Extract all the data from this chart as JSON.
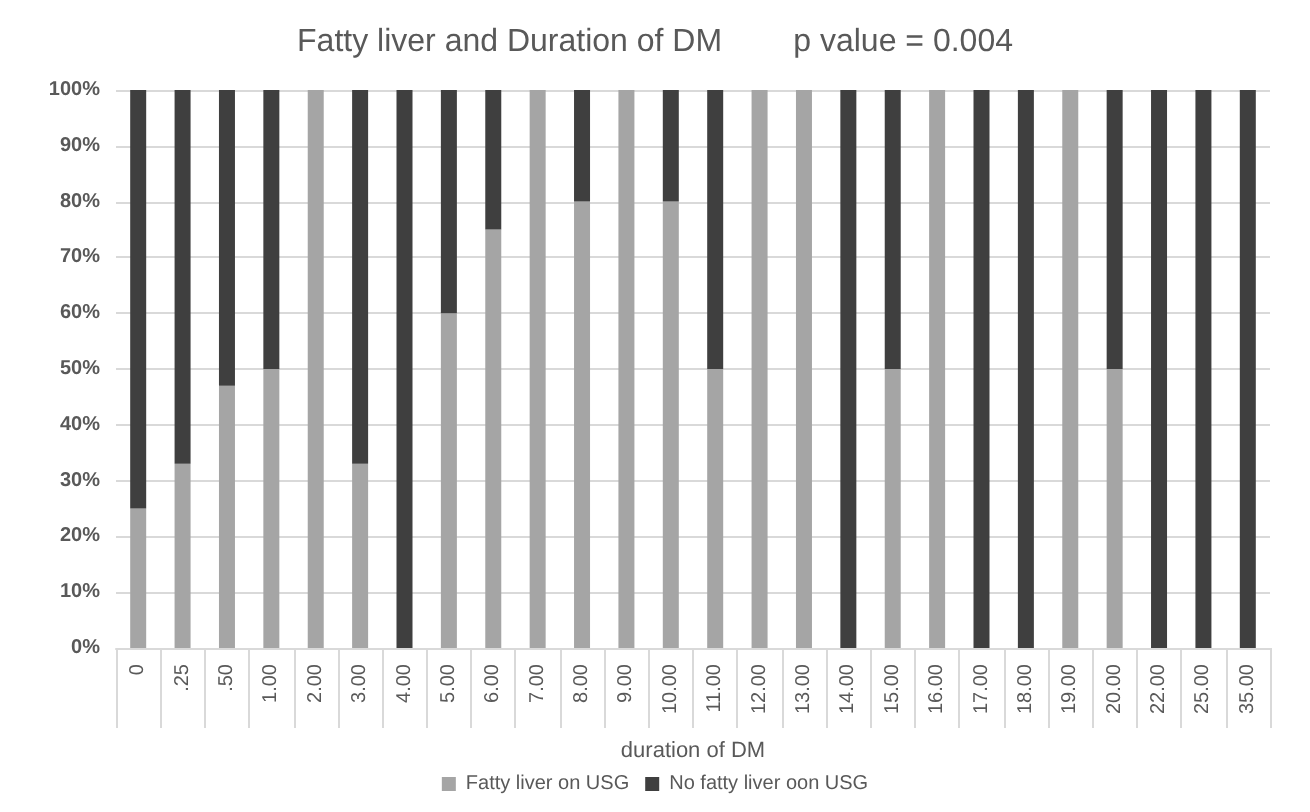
{
  "chart_data": {
    "type": "bar",
    "title": "Fatty liver and Duration of DM        p value = 0.004",
    "xlabel": "duration of DM",
    "stacked": true,
    "categories": [
      "0",
      ".25",
      ".50",
      "1.00",
      "2.00",
      "3.00",
      "4.00",
      "5.00",
      "6.00",
      "7.00",
      "8.00",
      "9.00",
      "10.00",
      "11.00",
      "12.00",
      "13.00",
      "14.00",
      "15.00",
      "16.00",
      "17.00",
      "18.00",
      "19.00",
      "20.00",
      "22.00",
      "25.00",
      "35.00"
    ],
    "series": [
      {
        "name": "Fatty liver on USG",
        "color": "#a5a5a5",
        "values": [
          25,
          33,
          47,
          50,
          100,
          33,
          0,
          60,
          75,
          100,
          80,
          100,
          80,
          50,
          100,
          100,
          0,
          50,
          100,
          0,
          0,
          100,
          50,
          0,
          0,
          0
        ]
      },
      {
        "name": "No fatty liver oon USG",
        "color": "#3f3f3f",
        "values": [
          75,
          67,
          53,
          50,
          0,
          67,
          100,
          40,
          25,
          0,
          20,
          0,
          20,
          50,
          0,
          0,
          100,
          50,
          0,
          100,
          100,
          0,
          50,
          100,
          100,
          100
        ]
      }
    ],
    "ylim": [
      0,
      100
    ],
    "yticks": [
      {
        "value": 0,
        "label": "0%"
      },
      {
        "value": 10,
        "label": "10%"
      },
      {
        "value": 20,
        "label": "20%"
      },
      {
        "value": 30,
        "label": "30%"
      },
      {
        "value": 40,
        "label": "40%"
      },
      {
        "value": 50,
        "label": "50%"
      },
      {
        "value": 60,
        "label": "60%"
      },
      {
        "value": 70,
        "label": "70%"
      },
      {
        "value": 80,
        "label": "80%"
      },
      {
        "value": 90,
        "label": "90%"
      },
      {
        "value": 100,
        "label": "100%"
      }
    ],
    "grid": "y",
    "legend": "bottom"
  }
}
